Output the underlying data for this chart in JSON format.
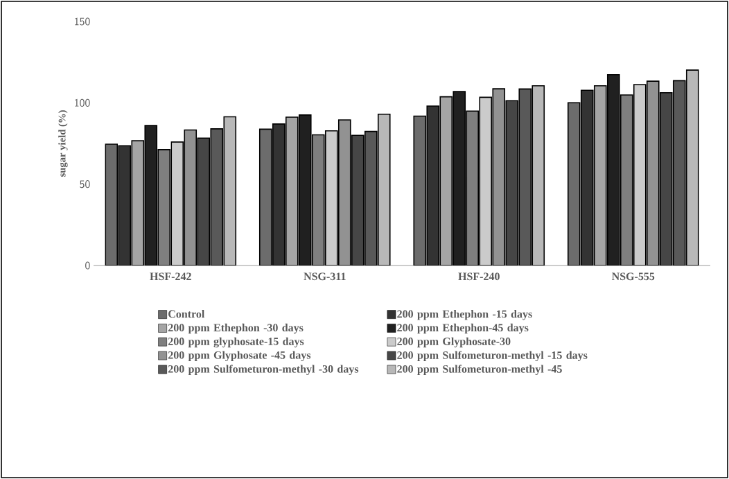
{
  "chart_data": {
    "type": "bar",
    "ylabel": "sugar yield (%)",
    "categories": [
      "HSF-242",
      "NSG-311",
      "HSF-240",
      "NSG-555"
    ],
    "series": [
      {
        "name": "Control",
        "color": "#6c6c6c",
        "values": [
          74.6,
          83.8,
          91.8,
          100.1
        ]
      },
      {
        "name": "200 ppm Ethephon -15 days",
        "color": "#333333",
        "values": [
          73.6,
          87,
          98,
          107.7
        ]
      },
      {
        "name": "200 ppm Ethephon -30 days",
        "color": "#a5a5a5",
        "values": [
          76.7,
          91.2,
          103.7,
          110.5
        ]
      },
      {
        "name": "200 ppm Ethephon-45 days",
        "color": "#202020",
        "values": [
          86,
          92.5,
          106.9,
          117.3
        ]
      },
      {
        "name": "200 ppm glyphosate-15 days",
        "color": "#7f7f7f",
        "values": [
          71.2,
          80.3,
          94.9,
          104.8
        ]
      },
      {
        "name": "200 ppm Glyphosate-30",
        "color": "#cbcbcb",
        "values": [
          75.9,
          82.8,
          103.4,
          111.2
        ]
      },
      {
        "name": "200 ppm Glyphosate -45 days",
        "color": "#929292",
        "values": [
          83.3,
          89.5,
          108.6,
          113.3
        ]
      },
      {
        "name": "200 ppm Sulfometuron-methyl -15 days",
        "color": "#464646",
        "values": [
          78.3,
          80,
          101.3,
          106.2
        ]
      },
      {
        "name": "200 ppm Sulfometuron-methyl -30 days",
        "color": "#595959",
        "values": [
          84,
          82.4,
          108.5,
          113.6
        ]
      },
      {
        "name": "200 ppm Sulfometuron-methyl -45",
        "color": "#b8b8b8",
        "values": [
          91.4,
          93,
          110.5,
          120.1
        ]
      }
    ],
    "ylim": [
      0,
      150
    ],
    "yticks": [
      0,
      50,
      100,
      150
    ],
    "grid": false,
    "legend": "bottom"
  }
}
